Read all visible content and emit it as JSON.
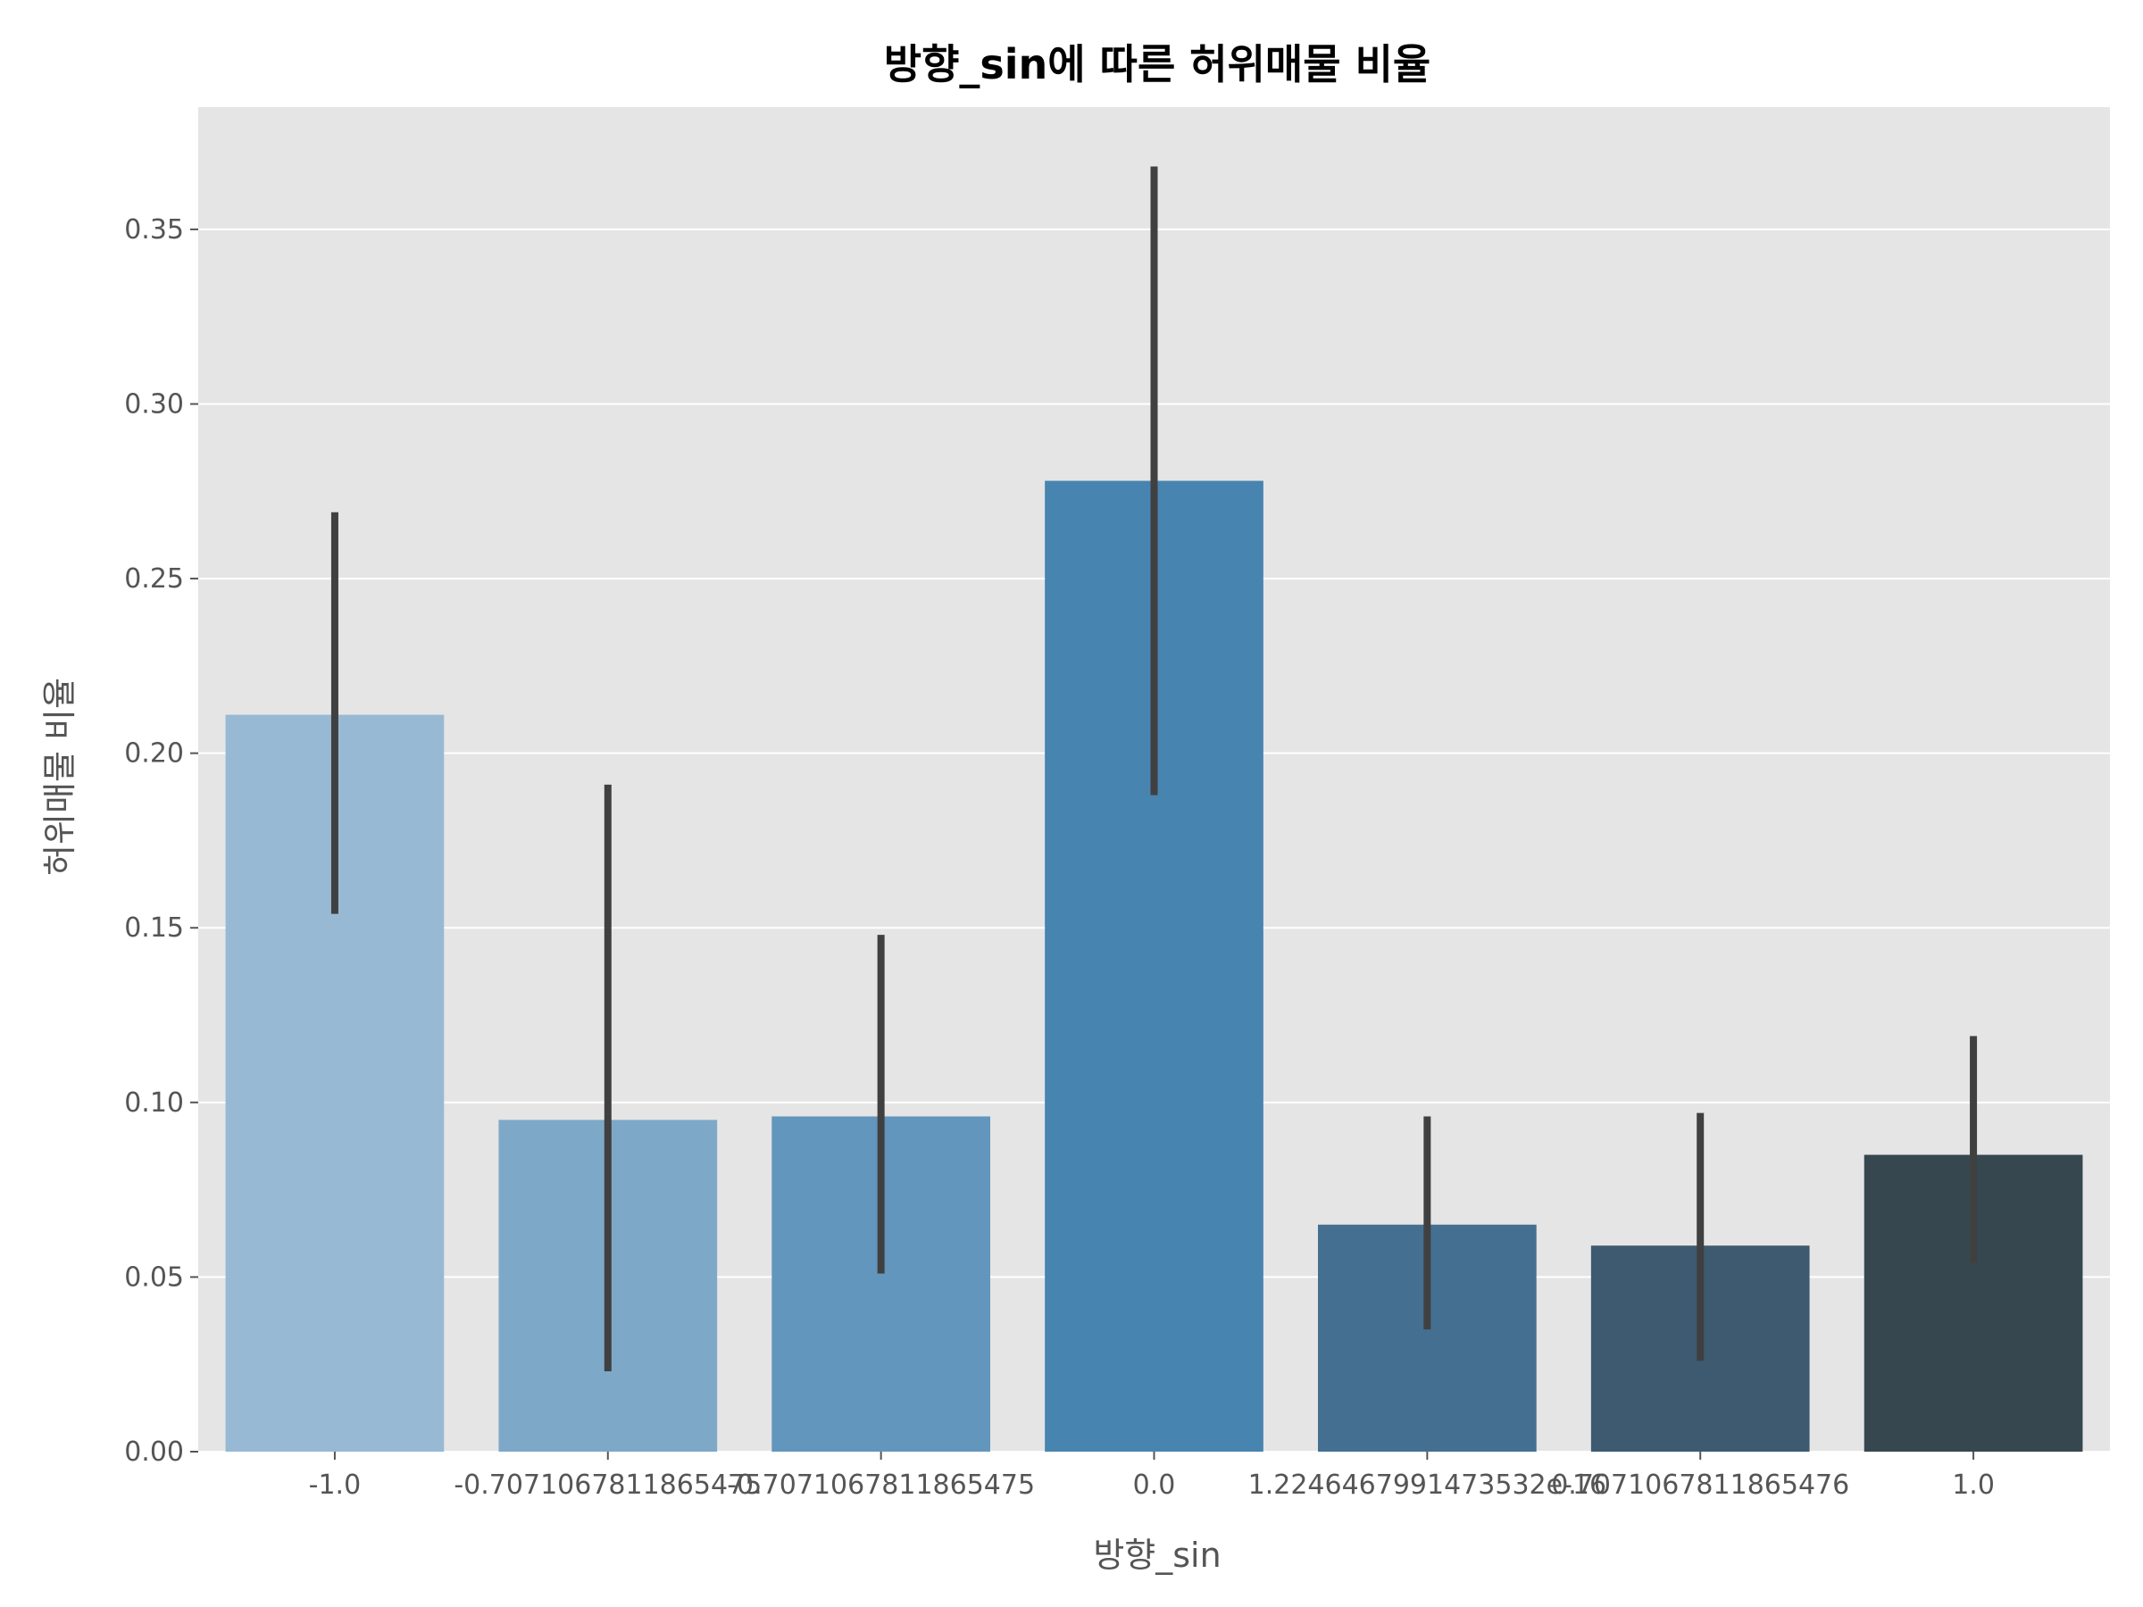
{
  "chart_data": {
    "type": "bar",
    "title": "방향_sin에 따른 허위매물 비율",
    "xlabel": "방향_sin",
    "ylabel": "허위매물 비율",
    "categories": [
      "-1.0",
      "-0.7071067811865475",
      "-0.7071067811865475",
      "0.0",
      "1.2246467991473532e-16",
      "0.7071067811865476",
      "1.0"
    ],
    "values": [
      0.211,
      0.095,
      0.096,
      0.278,
      0.065,
      0.059,
      0.085
    ],
    "error_bars": [
      [
        0.154,
        0.269
      ],
      [
        0.023,
        0.191
      ],
      [
        0.051,
        0.148
      ],
      [
        0.188,
        0.368
      ],
      [
        0.035,
        0.096
      ],
      [
        0.026,
        0.097
      ],
      [
        0.054,
        0.119
      ]
    ],
    "bar_colors": [
      "#98b9d3",
      "#7ea8c8",
      "#6396bd",
      "#4884b0",
      "#446f91",
      "#3d5a70",
      "#37474f"
    ],
    "error_color": "#404040",
    "background_color": "#e5e5e5",
    "ylim": [
      0,
      0.385
    ],
    "yticks": [
      0.0,
      0.05,
      0.1,
      0.15,
      0.2,
      0.25,
      0.3,
      0.35
    ],
    "ytick_labels": [
      "0.00",
      "0.05",
      "0.10",
      "0.15",
      "0.20",
      "0.25",
      "0.30",
      "0.35"
    ],
    "grid": true
  }
}
